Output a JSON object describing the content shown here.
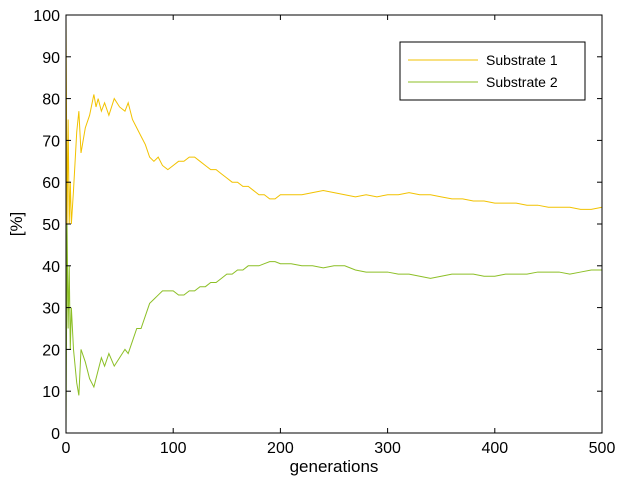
{
  "chart_data": {
    "type": "line",
    "xlabel": "generations",
    "ylabel": "[%]",
    "xlim": [
      0,
      500
    ],
    "ylim": [
      0,
      100
    ],
    "xticks": [
      "0",
      "100",
      "200",
      "300",
      "400",
      "500"
    ],
    "yticks": [
      "0",
      "10",
      "20",
      "30",
      "40",
      "50",
      "60",
      "70",
      "80",
      "90",
      "100"
    ],
    "grid": false,
    "legend_position": "top-right",
    "series": [
      {
        "name": "Substrate 1",
        "color": "#f2c200",
        "points": [
          [
            0,
            100
          ],
          [
            1,
            50
          ],
          [
            2,
            75
          ],
          [
            3,
            50
          ],
          [
            4,
            60
          ],
          [
            5,
            50
          ],
          [
            7,
            58
          ],
          [
            10,
            72
          ],
          [
            12,
            77
          ],
          [
            14,
            67
          ],
          [
            18,
            73
          ],
          [
            22,
            76
          ],
          [
            26,
            81
          ],
          [
            28,
            78
          ],
          [
            30,
            80
          ],
          [
            33,
            77
          ],
          [
            36,
            79
          ],
          [
            40,
            76
          ],
          [
            45,
            80
          ],
          [
            50,
            78
          ],
          [
            55,
            77
          ],
          [
            58,
            79
          ],
          [
            62,
            75
          ],
          [
            66,
            73
          ],
          [
            70,
            71
          ],
          [
            74,
            69
          ],
          [
            78,
            66
          ],
          [
            82,
            65
          ],
          [
            86,
            66
          ],
          [
            90,
            64
          ],
          [
            95,
            63
          ],
          [
            100,
            64
          ],
          [
            105,
            65
          ],
          [
            110,
            65
          ],
          [
            115,
            66
          ],
          [
            120,
            66
          ],
          [
            125,
            65
          ],
          [
            130,
            64
          ],
          [
            135,
            63
          ],
          [
            140,
            63
          ],
          [
            145,
            62
          ],
          [
            150,
            61
          ],
          [
            155,
            60
          ],
          [
            160,
            60
          ],
          [
            165,
            59
          ],
          [
            170,
            59
          ],
          [
            175,
            58
          ],
          [
            180,
            57
          ],
          [
            185,
            57
          ],
          [
            190,
            56
          ],
          [
            195,
            56
          ],
          [
            200,
            57
          ],
          [
            205,
            57
          ],
          [
            210,
            57
          ],
          [
            215,
            57
          ],
          [
            220,
            57
          ],
          [
            230,
            57.5
          ],
          [
            240,
            58
          ],
          [
            250,
            57.5
          ],
          [
            260,
            57
          ],
          [
            270,
            56.5
          ],
          [
            280,
            57
          ],
          [
            290,
            56.5
          ],
          [
            300,
            57
          ],
          [
            310,
            57
          ],
          [
            320,
            57.5
          ],
          [
            330,
            57
          ],
          [
            340,
            57
          ],
          [
            350,
            56.5
          ],
          [
            360,
            56
          ],
          [
            370,
            56
          ],
          [
            380,
            55.5
          ],
          [
            390,
            55.5
          ],
          [
            400,
            55
          ],
          [
            410,
            55
          ],
          [
            420,
            55
          ],
          [
            430,
            54.5
          ],
          [
            440,
            54.5
          ],
          [
            450,
            54
          ],
          [
            460,
            54
          ],
          [
            470,
            54
          ],
          [
            480,
            53.5
          ],
          [
            490,
            53.5
          ],
          [
            500,
            54
          ]
        ]
      },
      {
        "name": "Substrate 2",
        "color": "#8cbf26",
        "points": [
          [
            0,
            0
          ],
          [
            1,
            50
          ],
          [
            2,
            25
          ],
          [
            3,
            40
          ],
          [
            4,
            20
          ],
          [
            5,
            30
          ],
          [
            7,
            20
          ],
          [
            10,
            12
          ],
          [
            12,
            9
          ],
          [
            14,
            20
          ],
          [
            18,
            17
          ],
          [
            22,
            13
          ],
          [
            26,
            11
          ],
          [
            30,
            15
          ],
          [
            33,
            18
          ],
          [
            36,
            16
          ],
          [
            40,
            19
          ],
          [
            45,
            16
          ],
          [
            50,
            18
          ],
          [
            55,
            20
          ],
          [
            58,
            19
          ],
          [
            62,
            22
          ],
          [
            66,
            25
          ],
          [
            70,
            25
          ],
          [
            74,
            28
          ],
          [
            78,
            31
          ],
          [
            82,
            32
          ],
          [
            86,
            33
          ],
          [
            90,
            34
          ],
          [
            95,
            34
          ],
          [
            100,
            34
          ],
          [
            105,
            33
          ],
          [
            110,
            33
          ],
          [
            115,
            34
          ],
          [
            120,
            34
          ],
          [
            125,
            35
          ],
          [
            130,
            35
          ],
          [
            135,
            36
          ],
          [
            140,
            36
          ],
          [
            145,
            37
          ],
          [
            150,
            38
          ],
          [
            155,
            38
          ],
          [
            160,
            39
          ],
          [
            165,
            39
          ],
          [
            170,
            40
          ],
          [
            175,
            40
          ],
          [
            180,
            40
          ],
          [
            185,
            40.5
          ],
          [
            190,
            41
          ],
          [
            195,
            41
          ],
          [
            200,
            40.5
          ],
          [
            210,
            40.5
          ],
          [
            220,
            40
          ],
          [
            230,
            40
          ],
          [
            240,
            39.5
          ],
          [
            250,
            40
          ],
          [
            260,
            40
          ],
          [
            270,
            39
          ],
          [
            280,
            38.5
          ],
          [
            290,
            38.5
          ],
          [
            300,
            38.5
          ],
          [
            310,
            38
          ],
          [
            320,
            38
          ],
          [
            330,
            37.5
          ],
          [
            340,
            37
          ],
          [
            350,
            37.5
          ],
          [
            360,
            38
          ],
          [
            370,
            38
          ],
          [
            380,
            38
          ],
          [
            390,
            37.5
          ],
          [
            400,
            37.5
          ],
          [
            410,
            38
          ],
          [
            420,
            38
          ],
          [
            430,
            38
          ],
          [
            440,
            38.5
          ],
          [
            450,
            38.5
          ],
          [
            460,
            38.5
          ],
          [
            470,
            38
          ],
          [
            480,
            38.5
          ],
          [
            490,
            39
          ],
          [
            500,
            39
          ]
        ]
      }
    ]
  }
}
